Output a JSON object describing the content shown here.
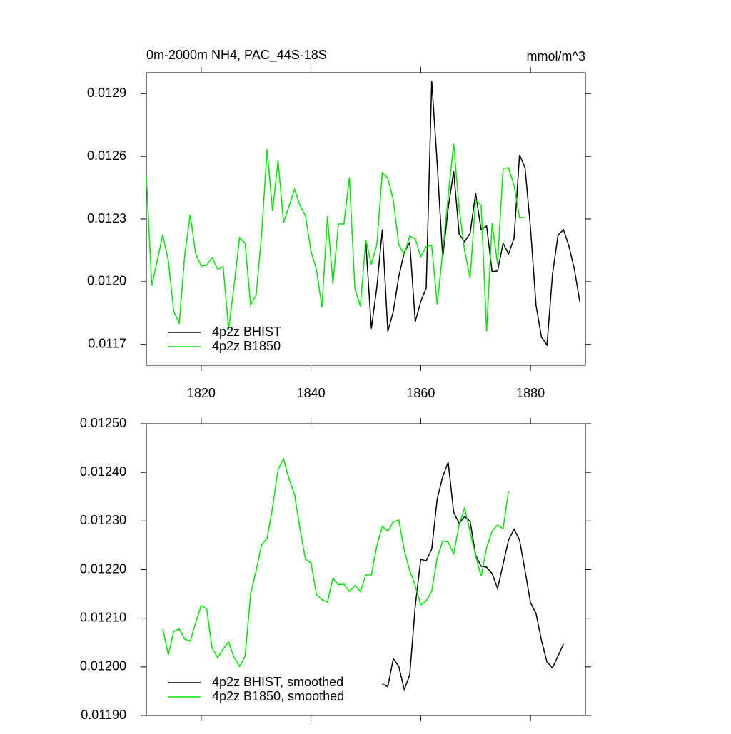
{
  "chart_data": [
    {
      "type": "line",
      "title": "0m-2000m NH4, PAC_44S-18S",
      "units": "mmol/m^3",
      "xlim": [
        1810,
        1890
      ],
      "xticks": [
        1820,
        1840,
        1860,
        1880
      ],
      "xtick_labels": true,
      "ylim": [
        0.0116,
        0.013
      ],
      "yticks": [
        0.0117,
        {
          "value": 0.012,
          "label": "0.0120"
        },
        0.0123,
        0.0126,
        0.0129
      ],
      "legend": "lower left",
      "series": [
        {
          "name": "4p2z BHIST",
          "color": "#000000",
          "x": [
            1850,
            1851,
            1852,
            1853,
            1854,
            1855,
            1856,
            1857,
            1858,
            1859,
            1860,
            1861,
            1862,
            1863,
            1864,
            1865,
            1866,
            1867,
            1868,
            1869,
            1870,
            1871,
            1872,
            1873,
            1874,
            1875,
            1876,
            1877,
            1878,
            1879,
            1880,
            1881,
            1882,
            1883,
            1884,
            1885,
            1886,
            1887,
            1888,
            1889
          ],
          "values": [
            0.012184,
            0.011775,
            0.011973,
            0.012249,
            0.011761,
            0.011857,
            0.012024,
            0.01214,
            0.012188,
            0.011809,
            0.011905,
            0.011969,
            0.012961,
            0.012566,
            0.012113,
            0.012351,
            0.012528,
            0.012228,
            0.012191,
            0.012232,
            0.012423,
            0.012249,
            0.012266,
            0.012048,
            0.012051,
            0.012184,
            0.012133,
            0.012208,
            0.012607,
            0.012545,
            0.012256,
            0.011888,
            0.011734,
            0.011697,
            0.012034,
            0.012222,
            0.012249,
            0.01217,
            0.012058,
            0.011901
          ]
        },
        {
          "name": "4p2z B1850",
          "color": "#00e600",
          "x": [
            1810,
            1811,
            1812,
            1813,
            1814,
            1815,
            1816,
            1817,
            1818,
            1819,
            1820,
            1821,
            1822,
            1823,
            1824,
            1825,
            1826,
            1827,
            1828,
            1829,
            1830,
            1831,
            1832,
            1833,
            1834,
            1835,
            1836,
            1837,
            1838,
            1839,
            1840,
            1841,
            1842,
            1843,
            1844,
            1845,
            1846,
            1847,
            1848,
            1849,
            1850,
            1851,
            1852,
            1853,
            1854,
            1855,
            1856,
            1857,
            1858,
            1859,
            1860,
            1861,
            1862,
            1863,
            1864,
            1865,
            1866,
            1867,
            1868,
            1869,
            1870,
            1871,
            1872,
            1873,
            1874,
            1875,
            1876,
            1877,
            1878,
            1879
          ],
          "values": [
            0.012505,
            0.01198,
            0.012102,
            0.012225,
            0.012102,
            0.011857,
            0.011802,
            0.012126,
            0.01232,
            0.012133,
            0.012075,
            0.012078,
            0.012116,
            0.012058,
            0.012072,
            0.011772,
            0.011983,
            0.012211,
            0.012184,
            0.011888,
            0.011935,
            0.012222,
            0.012634,
            0.012338,
            0.01258,
            0.012283,
            0.012361,
            0.012443,
            0.012365,
            0.012314,
            0.012147,
            0.012058,
            0.011877,
            0.012314,
            0.01199,
            0.012276,
            0.012276,
            0.012498,
            0.011969,
            0.011881,
            0.012201,
            0.012082,
            0.012177,
            0.012522,
            0.012494,
            0.012392,
            0.012177,
            0.01213,
            0.012218,
            0.012205,
            0.012119,
            0.012167,
            0.012174,
            0.011891,
            0.01214,
            0.012406,
            0.012661,
            0.012351,
            0.012147,
            0.012017,
            0.012392,
            0.012365,
            0.011761,
            0.01228,
            0.012085,
            0.012542,
            0.012545,
            0.01246,
            0.012307,
            0.012307
          ]
        }
      ]
    },
    {
      "type": "line",
      "xlim": [
        1810,
        1890
      ],
      "xticks": [
        1820,
        1840,
        1860,
        1880
      ],
      "xtick_labels": false,
      "ylim": [
        0.0119,
        0.0125
      ],
      "yticks": [
        {
          "value": 0.0119,
          "label": "0.01190"
        },
        {
          "value": 0.012,
          "label": "0.01200"
        },
        {
          "value": 0.0121,
          "label": "0.01210"
        },
        {
          "value": 0.0122,
          "label": "0.01220"
        },
        {
          "value": 0.0123,
          "label": "0.01230"
        },
        {
          "value": 0.0124,
          "label": "0.01240"
        },
        {
          "value": 0.0125,
          "label": "0.01250"
        }
      ],
      "legend": "lower left",
      "series": [
        {
          "name": "4p2z BHIST, smoothed",
          "color": "#000000",
          "x": [
            1853,
            1854,
            1855,
            1856,
            1857,
            1858,
            1859,
            1860,
            1861,
            1862,
            1863,
            1864,
            1865,
            1866,
            1867,
            1868,
            1869,
            1870,
            1871,
            1872,
            1873,
            1874,
            1875,
            1876,
            1877,
            1878,
            1879,
            1880,
            1881,
            1882,
            1883,
            1884,
            1885,
            1886
          ],
          "values": [
            0.011965,
            0.011959,
            0.012017,
            0.012001,
            0.011953,
            0.011984,
            0.012125,
            0.012221,
            0.012218,
            0.012242,
            0.012345,
            0.012391,
            0.012421,
            0.012318,
            0.012295,
            0.012309,
            0.012299,
            0.01223,
            0.012207,
            0.012205,
            0.012192,
            0.012161,
            0.012211,
            0.012261,
            0.012283,
            0.012261,
            0.012198,
            0.012132,
            0.01211,
            0.012054,
            0.01201,
            0.011998,
            0.012022,
            0.012047
          ]
        },
        {
          "name": "4p2z B1850, smoothed",
          "color": "#00e600",
          "x": [
            1813,
            1814,
            1815,
            1816,
            1817,
            1818,
            1819,
            1820,
            1821,
            1822,
            1823,
            1824,
            1825,
            1826,
            1827,
            1828,
            1829,
            1830,
            1831,
            1832,
            1833,
            1834,
            1835,
            1836,
            1837,
            1838,
            1839,
            1840,
            1841,
            1842,
            1843,
            1844,
            1845,
            1846,
            1847,
            1848,
            1849,
            1850,
            1851,
            1852,
            1853,
            1854,
            1855,
            1856,
            1857,
            1858,
            1859,
            1860,
            1861,
            1862,
            1863,
            1864,
            1865,
            1866,
            1867,
            1868,
            1869,
            1870,
            1871,
            1872,
            1873,
            1874,
            1875,
            1876
          ],
          "values": [
            0.012078,
            0.012025,
            0.012073,
            0.012078,
            0.012057,
            0.012053,
            0.012091,
            0.012126,
            0.012119,
            0.012038,
            0.012019,
            0.012037,
            0.012051,
            0.012019,
            0.012001,
            0.012022,
            0.012149,
            0.012198,
            0.012251,
            0.012264,
            0.012327,
            0.012406,
            0.012428,
            0.012386,
            0.012355,
            0.012284,
            0.012221,
            0.012214,
            0.012149,
            0.012138,
            0.012133,
            0.012182,
            0.012169,
            0.01217,
            0.012155,
            0.012167,
            0.012155,
            0.012189,
            0.012189,
            0.012249,
            0.012289,
            0.012279,
            0.012298,
            0.012302,
            0.01224,
            0.012198,
            0.012167,
            0.012127,
            0.012136,
            0.012155,
            0.012224,
            0.012259,
            0.012257,
            0.012232,
            0.012292,
            0.012327,
            0.012277,
            0.012229,
            0.012186,
            0.012245,
            0.012279,
            0.012292,
            0.012284,
            0.012362
          ]
        }
      ]
    }
  ]
}
